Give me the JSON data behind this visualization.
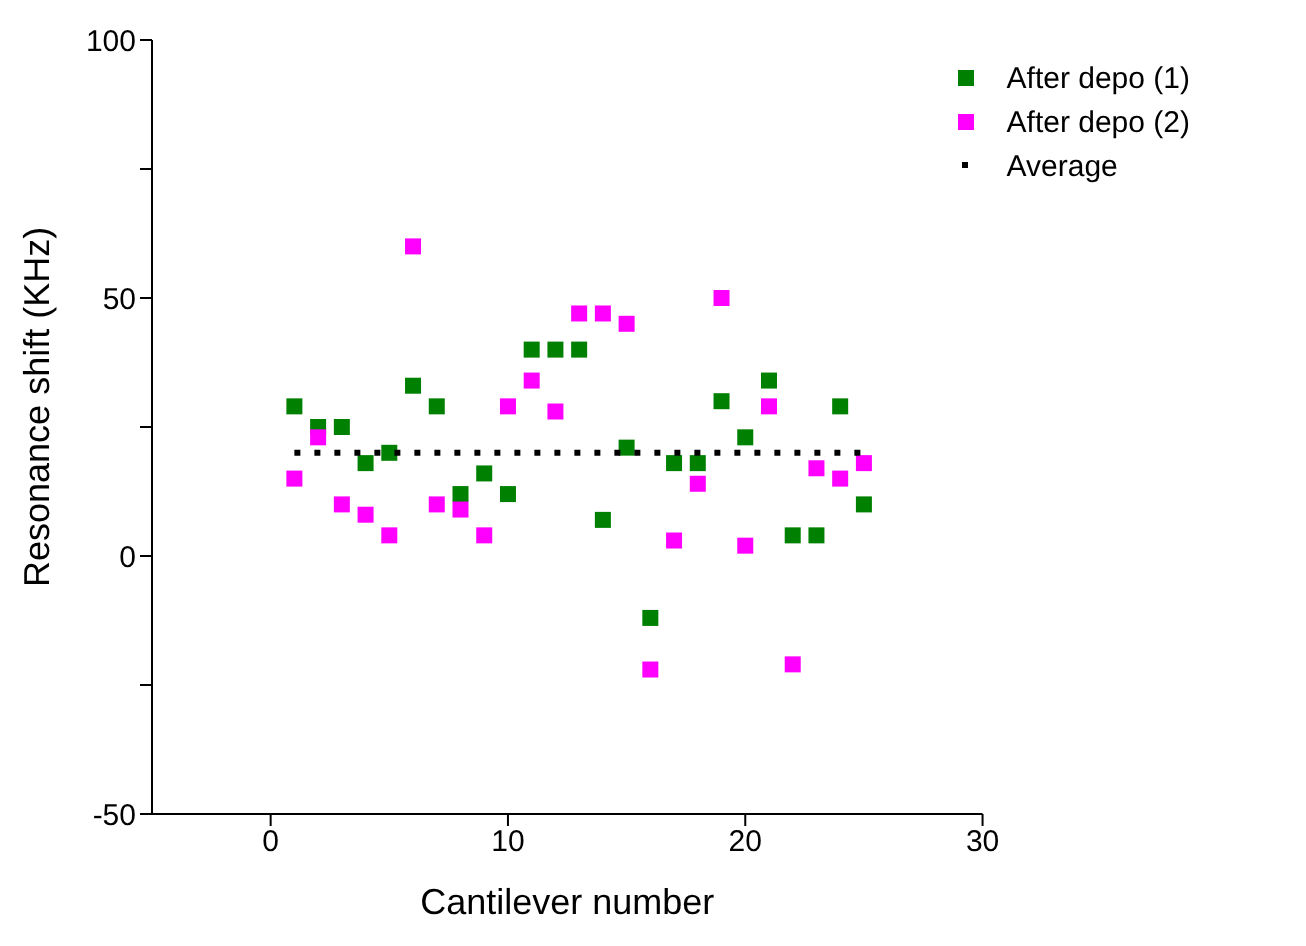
{
  "chart_data": {
    "type": "scatter",
    "xlabel": "Cantilever number",
    "ylabel": "Resonance shift (KHz)",
    "x": [
      1,
      2,
      3,
      4,
      5,
      6,
      7,
      8,
      9,
      10,
      11,
      12,
      13,
      14,
      15,
      16,
      17,
      18,
      19,
      20,
      21,
      22,
      23,
      24,
      25
    ],
    "series": [
      {
        "name": "After depo (1)",
        "color": "#008000",
        "values": [
          29,
          25,
          25,
          18,
          20,
          33,
          29,
          12,
          16,
          12,
          40,
          40,
          40,
          7,
          21,
          -12,
          18,
          18,
          30,
          23,
          34,
          4,
          4,
          29,
          10
        ]
      },
      {
        "name": "After depo (2)",
        "color": "#ff00ff",
        "values": [
          15,
          23,
          10,
          8,
          4,
          60,
          10,
          9,
          4,
          29,
          34,
          28,
          47,
          47,
          45,
          -22,
          3,
          14,
          50,
          2,
          29,
          -21,
          17,
          15,
          18
        ]
      },
      {
        "name": "Average",
        "color": "#000000",
        "type": "line",
        "line_style": "dotted",
        "marker": "none",
        "x": [
          1,
          25
        ],
        "values": [
          20,
          20
        ]
      }
    ],
    "marker": "square",
    "legend": "top right",
    "grid": false,
    "xlim": [
      -5,
      30
    ],
    "xticks": [
      0,
      10,
      20,
      30
    ],
    "ylim": [
      -50,
      100
    ],
    "yticks": [
      -50,
      {
        "value": -25,
        "label": null
      },
      0,
      {
        "value": 25,
        "label": null
      },
      50,
      {
        "value": 75,
        "label": null
      },
      100
    ]
  }
}
